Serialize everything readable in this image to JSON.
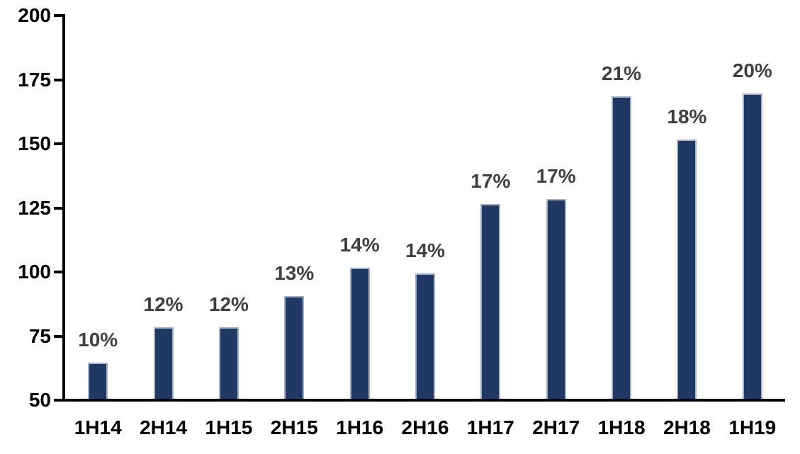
{
  "chart_data": {
    "type": "bar",
    "title": "",
    "xlabel": "",
    "ylabel": "",
    "categories": [
      "1H14",
      "2H14",
      "1H15",
      "2H15",
      "1H16",
      "2H16",
      "1H17",
      "2H17",
      "1H18",
      "2H18",
      "1H19"
    ],
    "values": [
      64,
      78,
      78,
      90,
      101,
      99,
      126,
      128,
      168,
      151,
      169
    ],
    "bar_labels": [
      "10%",
      "12%",
      "12%",
      "13%",
      "14%",
      "14%",
      "17%",
      "17%",
      "21%",
      "18%",
      "20%"
    ],
    "y_ticks": [
      200,
      175,
      150,
      125,
      100,
      75,
      50
    ],
    "ylim": [
      50,
      200
    ],
    "grid": false,
    "legend": false,
    "colors": {
      "bar_fill": "#1F3864",
      "bar_border": "#A3B2CC",
      "data_label_text": "#404040",
      "axis_text": "#000000",
      "axis_line": "#000000",
      "background": "#FFFFFF"
    }
  }
}
